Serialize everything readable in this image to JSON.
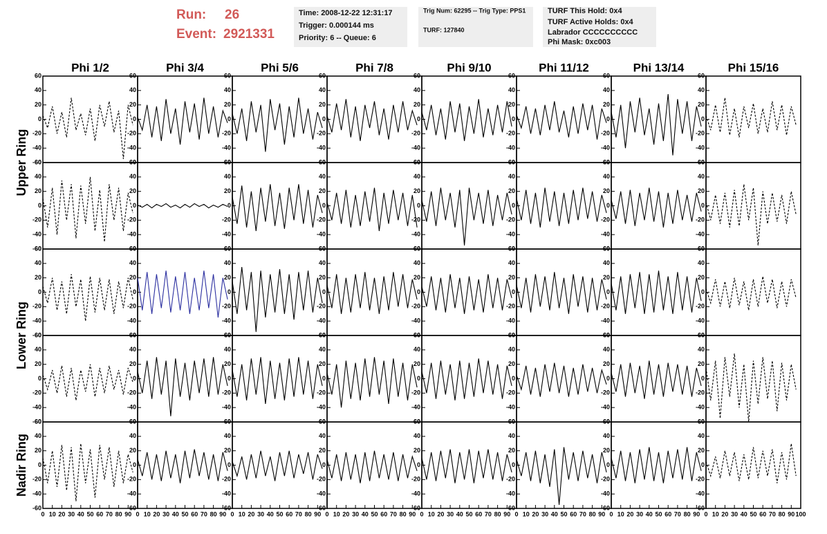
{
  "header": {
    "run_label": "Run:",
    "run": 26,
    "event_label": "Event:",
    "event": 2921331
  },
  "info_boxes": [
    [
      "Time: 2008-12-22 12:31:17",
      "Trigger: 0.000144 ms",
      "Priority: 6 -- Queue: 6"
    ],
    [
      "Trig Num: 62295 -- Trig Type: PPS1",
      "TURF: 127840"
    ],
    [
      "TURF This Hold: 0x4",
      "TURF Active Holds: 0x4",
      "Labrador CCCCCCCCCC",
      "Phi Mask: 0xc003"
    ]
  ],
  "columns": [
    "Phi 1/2",
    "Phi 3/4",
    "Phi 5/6",
    "Phi 7/8",
    "Phi 9/10",
    "Phi 11/12",
    "Phi 13/14",
    "Phi 15/16"
  ],
  "rings": [
    "Upper Ring",
    "Lower Ring",
    "Nadir Ring"
  ],
  "axes": {
    "xlim": [
      0,
      100
    ],
    "xticks": [
      0,
      10,
      20,
      30,
      40,
      50,
      60,
      70,
      80,
      90,
      100
    ],
    "ylim": [
      -60,
      60
    ],
    "yticks": [
      -60,
      -40,
      -20,
      0,
      20,
      40,
      60
    ]
  },
  "x": [
    0,
    5,
    10,
    15,
    20,
    25,
    30,
    35,
    40,
    45,
    50,
    55,
    60,
    65,
    70,
    75,
    80,
    85,
    90,
    95
  ],
  "panels": [
    [
      {
        "color": "#000000",
        "dashed": true,
        "values": [
          5,
          -12,
          18,
          -20,
          10,
          -25,
          30,
          -15,
          8,
          -22,
          15,
          -30,
          20,
          -10,
          25,
          -18,
          12,
          -55,
          20,
          -8
        ]
      },
      {
        "color": "#000000",
        "dashed": false,
        "values": [
          3,
          -15,
          20,
          -25,
          18,
          -30,
          28,
          -20,
          15,
          -35,
          25,
          -18,
          22,
          -28,
          30,
          -20,
          18,
          -25,
          12,
          -5
        ]
      },
      {
        "color": "#000000",
        "dashed": false,
        "values": [
          8,
          -20,
          15,
          -30,
          25,
          -18,
          20,
          -45,
          28,
          -15,
          22,
          -35,
          18,
          -25,
          30,
          -20,
          15,
          -28,
          10,
          -12
        ]
      },
      {
        "color": "#000000",
        "dashed": false,
        "values": [
          5,
          -18,
          22,
          -15,
          28,
          -25,
          18,
          -30,
          20,
          -12,
          25,
          -22,
          15,
          -28,
          20,
          -18,
          25,
          -15,
          12,
          -8
        ]
      },
      {
        "color": "#000000",
        "dashed": false,
        "values": [
          10,
          -15,
          20,
          -22,
          15,
          -28,
          25,
          -18,
          22,
          -30,
          18,
          -20,
          28,
          -25,
          15,
          -22,
          20,
          -18,
          25,
          -10
        ]
      },
      {
        "color": "#000000",
        "dashed": false,
        "values": [
          6,
          -12,
          18,
          -20,
          15,
          -22,
          20,
          -15,
          25,
          -18,
          12,
          -25,
          18,
          -20,
          22,
          -15,
          20,
          -28,
          15,
          -5
        ]
      },
      {
        "color": "#000000",
        "dashed": false,
        "values": [
          10,
          -25,
          20,
          -40,
          25,
          -18,
          30,
          -22,
          15,
          -35,
          22,
          -30,
          35,
          -50,
          28,
          -20,
          25,
          -30,
          18,
          -10
        ]
      },
      {
        "color": "#000000",
        "dashed": true,
        "values": [
          5,
          -15,
          20,
          -18,
          30,
          -22,
          15,
          -25,
          18,
          -12,
          22,
          -20,
          15,
          -18,
          25,
          -15,
          20,
          -22,
          18,
          -8
        ]
      }
    ],
    [
      {
        "color": "#000000",
        "dashed": true,
        "values": [
          10,
          -30,
          25,
          -40,
          35,
          -20,
          30,
          -45,
          28,
          -25,
          40,
          -35,
          22,
          -50,
          30,
          -20,
          25,
          -35,
          18,
          -10
        ]
      },
      {
        "color": "#000000",
        "dashed": false,
        "values": [
          1,
          -2,
          2,
          -3,
          2,
          -1,
          3,
          -2,
          1,
          -3,
          2,
          -2,
          3,
          -1,
          2,
          -3,
          1,
          -2,
          2,
          -1
        ]
      },
      {
        "color": "#000000",
        "dashed": false,
        "values": [
          12,
          -25,
          28,
          -30,
          20,
          -35,
          25,
          -22,
          30,
          -28,
          18,
          -32,
          25,
          -20,
          30,
          -25,
          22,
          -30,
          15,
          -10
        ]
      },
      {
        "color": "#000000",
        "dashed": false,
        "values": [
          5,
          -20,
          18,
          -25,
          22,
          -30,
          15,
          -28,
          20,
          -22,
          25,
          -35,
          18,
          -25,
          22,
          -20,
          18,
          -28,
          15,
          -30
        ]
      },
      {
        "color": "#000000",
        "dashed": false,
        "values": [
          8,
          -22,
          20,
          -28,
          25,
          -20,
          18,
          -30,
          22,
          -55,
          25,
          -20,
          18,
          -25,
          22,
          -28,
          15,
          -20,
          18,
          -12
        ]
      },
      {
        "color": "#000000",
        "dashed": false,
        "values": [
          10,
          -20,
          22,
          -25,
          18,
          -30,
          25,
          -22,
          20,
          -28,
          18,
          -25,
          22,
          -20,
          25,
          -18,
          20,
          -22,
          15,
          -10
        ]
      },
      {
        "color": "#000000",
        "dashed": false,
        "values": [
          8,
          -18,
          20,
          -25,
          22,
          -28,
          18,
          -20,
          25,
          -22,
          20,
          -30,
          18,
          -25,
          22,
          -20,
          15,
          -22,
          18,
          -8
        ]
      },
      {
        "color": "#000000",
        "dashed": true,
        "values": [
          5,
          -20,
          15,
          -25,
          18,
          -30,
          22,
          -28,
          30,
          -20,
          25,
          -55,
          20,
          -25,
          18,
          -22,
          15,
          -25,
          20,
          -12
        ]
      }
    ],
    [
      {
        "color": "#000000",
        "dashed": true,
        "values": [
          8,
          -15,
          20,
          -25,
          15,
          -30,
          25,
          -20,
          18,
          -40,
          22,
          -28,
          20,
          -25,
          18,
          -30,
          15,
          -22,
          20,
          -10
        ]
      },
      {
        "color": "#2b2fa0",
        "dashed": false,
        "values": [
          20,
          -25,
          28,
          -30,
          25,
          -22,
          30,
          -28,
          22,
          -25,
          28,
          -30,
          20,
          -25,
          30,
          -22,
          25,
          -35,
          20,
          -10
        ]
      },
      {
        "color": "#000000",
        "dashed": false,
        "values": [
          15,
          -30,
          35,
          -25,
          28,
          -55,
          30,
          -35,
          25,
          -28,
          32,
          -30,
          25,
          -38,
          28,
          -25,
          30,
          -28,
          20,
          -15
        ]
      },
      {
        "color": "#000000",
        "dashed": false,
        "values": [
          10,
          -22,
          25,
          -30,
          20,
          -28,
          25,
          -22,
          28,
          -25,
          20,
          -30,
          22,
          -25,
          28,
          -20,
          25,
          -22,
          18,
          -10
        ]
      },
      {
        "color": "#000000",
        "dashed": false,
        "values": [
          8,
          -20,
          22,
          -25,
          20,
          -28,
          25,
          -22,
          20,
          -30,
          22,
          -25,
          18,
          -28,
          25,
          -22,
          20,
          -25,
          18,
          -8
        ]
      },
      {
        "color": "#000000",
        "dashed": false,
        "values": [
          10,
          -22,
          20,
          -28,
          25,
          -20,
          22,
          -25,
          28,
          -22,
          20,
          -30,
          25,
          -20,
          22,
          -28,
          20,
          -25,
          18,
          -10
        ]
      },
      {
        "color": "#000000",
        "dashed": false,
        "values": [
          12,
          -25,
          22,
          -30,
          25,
          -22,
          28,
          -30,
          25,
          -28,
          30,
          -25,
          22,
          -30,
          28,
          -25,
          22,
          -28,
          20,
          -12
        ]
      },
      {
        "color": "#000000",
        "dashed": true,
        "values": [
          5,
          -15,
          18,
          -20,
          15,
          -22,
          20,
          -18,
          15,
          -25,
          18,
          -20,
          22,
          -15,
          18,
          -22,
          15,
          -20,
          18,
          -8
        ]
      }
    ],
    [
      {
        "color": "#000000",
        "dashed": true,
        "values": [
          5,
          -15,
          12,
          -20,
          18,
          -25,
          15,
          -30,
          12,
          -18,
          20,
          -25,
          15,
          -20,
          18,
          -15,
          12,
          -22,
          15,
          -5
        ]
      },
      {
        "color": "#000000",
        "dashed": false,
        "values": [
          10,
          -20,
          25,
          -28,
          30,
          -22,
          25,
          -52,
          28,
          -25,
          22,
          -30,
          25,
          -20,
          28,
          -25,
          30,
          -22,
          20,
          -10
        ]
      },
      {
        "color": "#000000",
        "dashed": false,
        "values": [
          12,
          -25,
          20,
          -30,
          28,
          -22,
          30,
          -35,
          25,
          -28,
          22,
          -30,
          28,
          -25,
          30,
          -22,
          25,
          -28,
          20,
          -10
        ]
      },
      {
        "color": "#000000",
        "dashed": false,
        "values": [
          8,
          -22,
          20,
          -40,
          25,
          -28,
          22,
          -30,
          28,
          -25,
          30,
          -22,
          25,
          -35,
          28,
          -25,
          22,
          -30,
          20,
          -12
        ]
      },
      {
        "color": "#000000",
        "dashed": false,
        "values": [
          10,
          -20,
          22,
          -28,
          25,
          -22,
          20,
          -30,
          25,
          -28,
          22,
          -25,
          28,
          -20,
          25,
          -22,
          20,
          -28,
          18,
          -10
        ]
      },
      {
        "color": "#000000",
        "dashed": false,
        "values": [
          5,
          -15,
          18,
          -22,
          15,
          -25,
          20,
          -18,
          22,
          -20,
          18,
          -25,
          15,
          -22,
          20,
          -18,
          15,
          -20,
          12,
          -8
        ]
      },
      {
        "color": "#000000",
        "dashed": false,
        "values": [
          8,
          -18,
          20,
          -25,
          22,
          -20,
          18,
          -28,
          25,
          -22,
          20,
          -25,
          22,
          -18,
          20,
          -22,
          18,
          -25,
          15,
          -10
        ]
      },
      {
        "color": "#000000",
        "dashed": true,
        "values": [
          15,
          -30,
          25,
          -55,
          30,
          -25,
          35,
          -40,
          20,
          -60,
          25,
          -35,
          30,
          -28,
          25,
          -45,
          22,
          -30,
          20,
          -15
        ]
      }
    ],
    [
      {
        "color": "#000000",
        "dashed": true,
        "values": [
          10,
          -25,
          20,
          -30,
          28,
          -35,
          25,
          -50,
          30,
          -25,
          22,
          -45,
          28,
          -20,
          25,
          -30,
          20,
          -25,
          15,
          -10
        ]
      },
      {
        "color": "#000000",
        "dashed": false,
        "values": [
          8,
          -15,
          18,
          -20,
          15,
          -22,
          20,
          -18,
          15,
          -25,
          20,
          -18,
          22,
          -15,
          18,
          -20,
          15,
          -22,
          18,
          -8
        ]
      },
      {
        "color": "#000000",
        "dashed": false,
        "values": [
          5,
          -15,
          12,
          -20,
          15,
          -18,
          20,
          -15,
          12,
          -22,
          18,
          -15,
          20,
          -18,
          15,
          -12,
          18,
          -20,
          15,
          -5
        ]
      },
      {
        "color": "#000000",
        "dashed": false,
        "values": [
          8,
          -18,
          15,
          -22,
          18,
          -20,
          15,
          -25,
          18,
          -22,
          20,
          -18,
          15,
          -20,
          18,
          -22,
          15,
          -18,
          12,
          -8
        ]
      },
      {
        "color": "#000000",
        "dashed": false,
        "values": [
          10,
          -20,
          18,
          -22,
          20,
          -18,
          22,
          -25,
          18,
          -20,
          22,
          -25,
          20,
          -18,
          22,
          -20,
          18,
          -22,
          15,
          -10
        ]
      },
      {
        "color": "#000000",
        "dashed": false,
        "values": [
          8,
          -15,
          18,
          -22,
          20,
          -25,
          15,
          -30,
          22,
          -55,
          25,
          -20,
          18,
          -22,
          20,
          -18,
          15,
          -25,
          18,
          -10
        ]
      },
      {
        "color": "#000000",
        "dashed": false,
        "values": [
          10,
          -18,
          20,
          -22,
          18,
          -25,
          22,
          -20,
          25,
          -22,
          18,
          -25,
          20,
          -18,
          22,
          -20,
          25,
          -22,
          18,
          -8
        ]
      },
      {
        "color": "#000000",
        "dashed": true,
        "values": [
          5,
          -15,
          12,
          -18,
          20,
          -15,
          18,
          -22,
          15,
          -20,
          25,
          -18,
          20,
          -15,
          22,
          -25,
          18,
          -20,
          30,
          -15
        ]
      }
    ]
  ]
}
